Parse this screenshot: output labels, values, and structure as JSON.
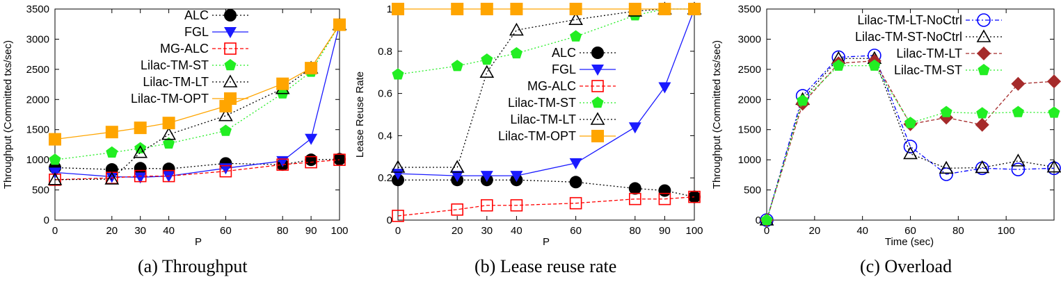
{
  "chart_data": [
    {
      "type": "line",
      "caption": "(a) Throughput",
      "xlabel": "P",
      "ylabel": "Throughput (Committed txs/sec)",
      "xlim": [
        0,
        100
      ],
      "ylim": [
        0,
        3500
      ],
      "xticks": [
        0,
        20,
        30,
        40,
        60,
        80,
        90,
        100
      ],
      "yticks": [
        0,
        500,
        1000,
        1500,
        2000,
        2500,
        3000,
        3500
      ],
      "x": [
        0,
        20,
        30,
        40,
        60,
        80,
        90,
        100
      ],
      "legend_position": "top-right",
      "series": [
        {
          "name": "ALC",
          "style": "alc",
          "values": [
            870,
            840,
            860,
            850,
            940,
            920,
            1000,
            1010
          ]
        },
        {
          "name": "FGL",
          "style": "fgl",
          "values": [
            790,
            720,
            710,
            730,
            860,
            980,
            1350,
            3240
          ]
        },
        {
          "name": "MG-ALC",
          "style": "mgalc",
          "values": [
            670,
            700,
            730,
            730,
            810,
            920,
            960,
            1000
          ]
        },
        {
          "name": "Lilac-TM-ST",
          "style": "st",
          "values": [
            1000,
            1120,
            1190,
            1270,
            1480,
            2100,
            2460,
            3240
          ]
        },
        {
          "name": "Lilac-TM-LT",
          "style": "lt",
          "values": [
            670,
            680,
            1120,
            1420,
            1730,
            2180,
            2520,
            3240
          ]
        },
        {
          "name": "Lilac-TM-OPT",
          "style": "opt",
          "values": [
            1340,
            1460,
            1530,
            1610,
            1890,
            2260,
            2520,
            3240
          ]
        }
      ]
    },
    {
      "type": "line",
      "caption": "(b) Lease reuse rate",
      "xlabel": "P",
      "ylabel": "Lease Reuse Rate",
      "xlim": [
        0,
        100
      ],
      "ylim": [
        0,
        1
      ],
      "xticks": [
        0,
        20,
        30,
        40,
        60,
        80,
        90,
        100
      ],
      "yticks": [
        0,
        0.2,
        0.4,
        0.6,
        0.8,
        1
      ],
      "x": [
        0,
        20,
        30,
        40,
        60,
        80,
        90,
        100
      ],
      "legend_position": "center-right",
      "series": [
        {
          "name": "ALC",
          "style": "alc",
          "values": [
            0.19,
            0.19,
            0.19,
            0.19,
            0.18,
            0.15,
            0.14,
            0.11
          ]
        },
        {
          "name": "FGL",
          "style": "fgl",
          "values": [
            0.22,
            0.21,
            0.21,
            0.21,
            0.27,
            0.44,
            0.63,
            1.0
          ]
        },
        {
          "name": "MG-ALC",
          "style": "mgalc",
          "values": [
            0.02,
            0.05,
            0.07,
            0.07,
            0.08,
            0.1,
            0.1,
            0.11
          ]
        },
        {
          "name": "Lilac-TM-ST",
          "style": "st",
          "values": [
            0.69,
            0.73,
            0.76,
            0.79,
            0.87,
            0.97,
            1.0,
            1.0
          ]
        },
        {
          "name": "Lilac-TM-LT",
          "style": "lt",
          "values": [
            0.25,
            0.25,
            0.7,
            0.9,
            0.95,
            0.99,
            1.0,
            1.0
          ]
        },
        {
          "name": "Lilac-TM-OPT",
          "style": "opt",
          "values": [
            1.0,
            1.0,
            1.0,
            1.0,
            1.0,
            1.0,
            1.0,
            1.0
          ]
        }
      ]
    },
    {
      "type": "line",
      "caption": "(c) Overload",
      "xlabel": "Time (sec)",
      "ylabel": "Throughput (Committed txs/sec)",
      "xlim": [
        0,
        120
      ],
      "ylim": [
        0,
        3500
      ],
      "xticks": [
        0,
        20,
        40,
        60,
        80,
        100
      ],
      "yticks": [
        0,
        500,
        1000,
        1500,
        2000,
        2500,
        3000,
        3500
      ],
      "x": [
        0,
        15,
        30,
        45,
        60,
        75,
        90,
        105,
        120
      ],
      "legend_position": "top-right",
      "series": [
        {
          "name": "Lilac-TM-LT-NoCtrl",
          "style": "ltnoctrl",
          "values": [
            0,
            2060,
            2700,
            2730,
            1220,
            760,
            860,
            840,
            860
          ]
        },
        {
          "name": "Lilac-TM-ST-NoCtrl",
          "style": "stnoctrl",
          "values": [
            0,
            2000,
            2680,
            2680,
            1100,
            860,
            870,
            980,
            880
          ]
        },
        {
          "name": "Lilac-TM-LT",
          "style": "ltdiamond",
          "values": [
            0,
            1930,
            2600,
            2640,
            1590,
            1700,
            1580,
            2260,
            2300
          ]
        },
        {
          "name": "Lilac-TM-ST",
          "style": "st",
          "values": [
            0,
            1980,
            2560,
            2560,
            1610,
            1790,
            1770,
            1790,
            1780
          ]
        }
      ]
    }
  ],
  "styles": {
    "alc": {
      "color": "#000000",
      "dash": "2,3",
      "marker": "filled-circle"
    },
    "fgl": {
      "color": "#1a1aff",
      "dash": "",
      "marker": "filled-triangle-down"
    },
    "mgalc": {
      "color": "#ff0000",
      "dash": "5,3",
      "marker": "open-square"
    },
    "st": {
      "color": "#22ee22",
      "dash": "2,3",
      "marker": "filled-pentagon"
    },
    "lt": {
      "color": "#000000",
      "dash": "2,3",
      "marker": "open-triangle"
    },
    "opt": {
      "color": "#ffa500",
      "dash": "",
      "marker": "filled-square"
    },
    "ltnoctrl": {
      "color": "#0000ff",
      "dash": "6,3,2,3",
      "marker": "open-circle"
    },
    "stnoctrl": {
      "color": "#000000",
      "dash": "2,3",
      "marker": "open-triangle"
    },
    "ltdiamond": {
      "color": "#a52a2a",
      "dash": "5,3",
      "marker": "filled-diamond"
    }
  }
}
